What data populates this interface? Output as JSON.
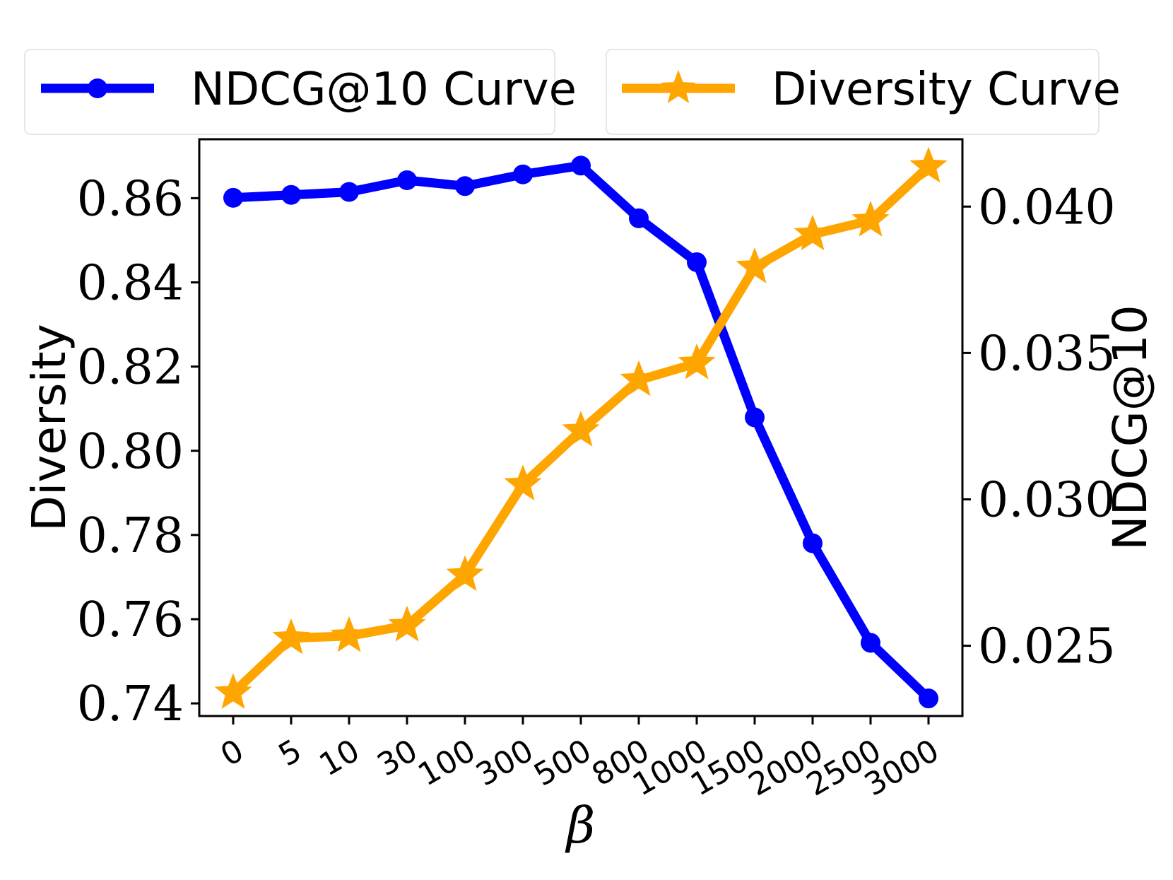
{
  "chart_data": {
    "type": "line",
    "categories": [
      "0",
      "5",
      "10",
      "30",
      "100",
      "300",
      "500",
      "800",
      "1000",
      "1500",
      "2000",
      "2500",
      "3000"
    ],
    "xlabel": "β",
    "ylabel_left": "Diversity",
    "ylabel_right": "NDCG@10",
    "ylim_left": [
      0.737,
      0.874
    ],
    "ylim_right": [
      0.0226,
      0.0423
    ],
    "yticks_left": [
      0.74,
      0.76,
      0.78,
      0.8,
      0.82,
      0.84,
      0.86
    ],
    "yticks_left_labels": [
      "0.74",
      "0.76",
      "0.78",
      "0.80",
      "0.82",
      "0.84",
      "0.86"
    ],
    "yticks_right": [
      0.025,
      0.03,
      0.035,
      0.04
    ],
    "yticks_right_labels": [
      "0.025",
      "0.030",
      "0.035",
      "0.040"
    ],
    "series": [
      {
        "name": "NDCG@10 Curve",
        "axis": "right",
        "marker": "circle",
        "color": "#0000ff",
        "values": [
          0.0403,
          0.0404,
          0.0405,
          0.0409,
          0.0407,
          0.0411,
          0.0414,
          0.0396,
          0.0381,
          0.0328,
          0.0285,
          0.0251,
          0.0232
        ]
      },
      {
        "name": "Diversity Curve",
        "axis": "left",
        "marker": "star",
        "color": "#ffa500",
        "values": [
          0.7425,
          0.7555,
          0.756,
          0.7585,
          0.7705,
          0.792,
          0.8048,
          0.8168,
          0.8208,
          0.8436,
          0.8514,
          0.8547,
          0.8675
        ]
      }
    ],
    "legend": [
      "NDCG@10 Curve",
      "Diversity Curve"
    ],
    "legend_position": "top",
    "grid": false
  }
}
